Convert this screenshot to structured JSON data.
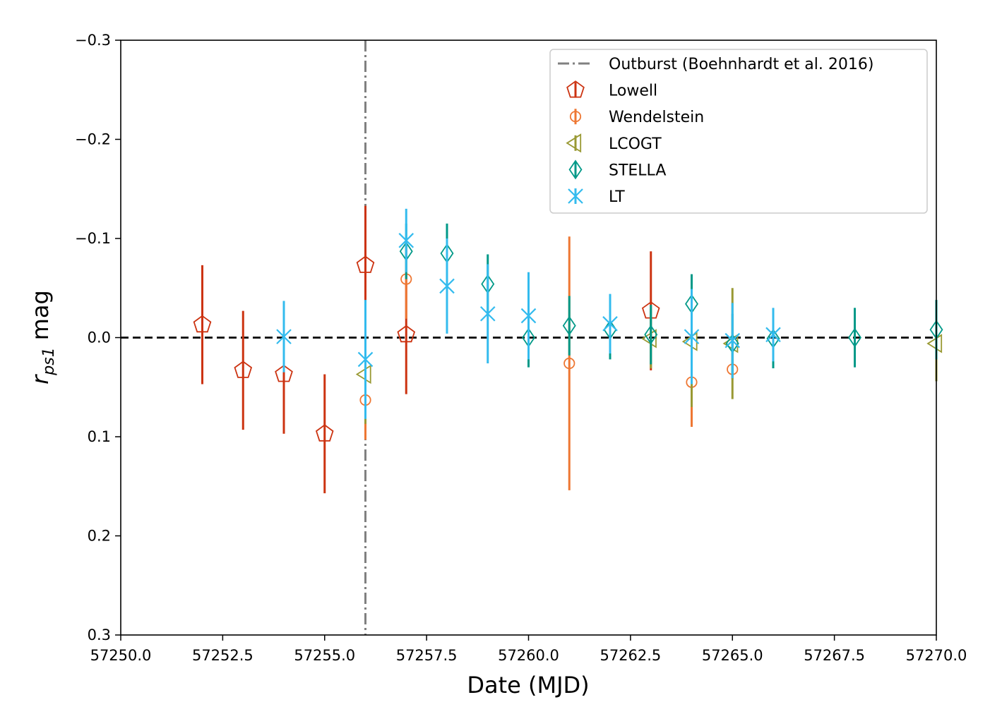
{
  "chart_data": {
    "type": "scatter",
    "xlabel": "Date (MJD)",
    "ylabel_main": "r",
    "ylabel_sub": "ps1",
    "ylabel_unit": "mag",
    "xlim": [
      57250.0,
      57270.0
    ],
    "ylim": [
      0.3,
      -0.3
    ],
    "y_inverted": true,
    "grid": false,
    "legend_position": "top-right",
    "x_ticks": [
      "57250.0",
      "57252.5",
      "57255.0",
      "57257.5",
      "57260.0",
      "57262.5",
      "57265.0",
      "57267.5",
      "57270.0"
    ],
    "y_ticks": [
      "−0.3",
      "−0.2",
      "−0.1",
      "0.0",
      "0.1",
      "0.2",
      "0.3"
    ],
    "reference_line": {
      "y": 0.0,
      "style": "dashed",
      "color": "#000000"
    },
    "outburst": {
      "label": "Outburst (Boehnhardt et al. 2016)",
      "x": 57256.0,
      "color": "#808080",
      "style": "dash-dot"
    },
    "series": [
      {
        "name": "Lowell",
        "marker": "pentagon",
        "color": "#cc3311",
        "points": [
          {
            "x": 57252.0,
            "y": -0.013,
            "err": 0.06
          },
          {
            "x": 57253.0,
            "y": 0.033,
            "err": 0.06
          },
          {
            "x": 57254.0,
            "y": 0.037,
            "err": 0.06
          },
          {
            "x": 57255.0,
            "y": 0.097,
            "err": 0.06
          },
          {
            "x": 57256.0,
            "y": -0.073,
            "err": 0.06
          },
          {
            "x": 57257.0,
            "y": -0.003,
            "err": 0.06
          },
          {
            "x": 57263.0,
            "y": -0.027,
            "err": 0.06
          }
        ]
      },
      {
        "name": "Wendelstein",
        "marker": "circle",
        "color": "#ee7733",
        "points": [
          {
            "x": 57256.0,
            "y": 0.063,
            "err": 0.04
          },
          {
            "x": 57257.0,
            "y": -0.059,
            "err": 0.04
          },
          {
            "x": 57261.0,
            "y": 0.026,
            "err": 0.128
          },
          {
            "x": 57264.0,
            "y": 0.045,
            "err": 0.045
          },
          {
            "x": 57265.0,
            "y": 0.032,
            "err": 0.01
          }
        ]
      },
      {
        "name": "LCOGT",
        "marker": "triangle-left",
        "color": "#999933",
        "points": [
          {
            "x": 57256.0,
            "y": 0.037,
            "err": 0.05
          },
          {
            "x": 57263.0,
            "y": 0.001,
            "err": 0.03
          },
          {
            "x": 57264.0,
            "y": 0.004,
            "err": 0.066
          },
          {
            "x": 57265.0,
            "y": 0.006,
            "err": 0.056
          },
          {
            "x": 57270.0,
            "y": 0.006,
            "err": 0.038
          }
        ]
      },
      {
        "name": "STELLA",
        "marker": "thin-diamond",
        "color": "#009988",
        "points": [
          {
            "x": 57257.0,
            "y": -0.087,
            "err": 0.028
          },
          {
            "x": 57258.0,
            "y": -0.085,
            "err": 0.03
          },
          {
            "x": 57259.0,
            "y": -0.054,
            "err": 0.03
          },
          {
            "x": 57260.0,
            "y": 0.0,
            "err": 0.03
          },
          {
            "x": 57261.0,
            "y": -0.012,
            "err": 0.03
          },
          {
            "x": 57262.0,
            "y": -0.008,
            "err": 0.03
          },
          {
            "x": 57263.0,
            "y": -0.003,
            "err": 0.03
          },
          {
            "x": 57264.0,
            "y": -0.034,
            "err": 0.03
          },
          {
            "x": 57265.0,
            "y": 0.006,
            "err": 0.03
          },
          {
            "x": 57266.0,
            "y": 0.001,
            "err": 0.03
          },
          {
            "x": 57268.0,
            "y": 0.0,
            "err": 0.03
          },
          {
            "x": 57270.0,
            "y": -0.008,
            "err": 0.03
          }
        ]
      },
      {
        "name": "LT",
        "marker": "x",
        "color": "#33bbee",
        "points": [
          {
            "x": 57254.0,
            "y": -0.001,
            "err": 0.036
          },
          {
            "x": 57256.0,
            "y": 0.022,
            "err": 0.06
          },
          {
            "x": 57257.0,
            "y": -0.098,
            "err": 0.032
          },
          {
            "x": 57258.0,
            "y": -0.052,
            "err": 0.048
          },
          {
            "x": 57259.0,
            "y": -0.024,
            "err": 0.05
          },
          {
            "x": 57260.0,
            "y": -0.022,
            "err": 0.044
          },
          {
            "x": 57262.0,
            "y": -0.014,
            "err": 0.03
          },
          {
            "x": 57264.0,
            "y": -0.001,
            "err": 0.048
          },
          {
            "x": 57265.0,
            "y": 0.003,
            "err": 0.038
          },
          {
            "x": 57266.0,
            "y": -0.003,
            "err": 0.027
          }
        ]
      }
    ]
  }
}
